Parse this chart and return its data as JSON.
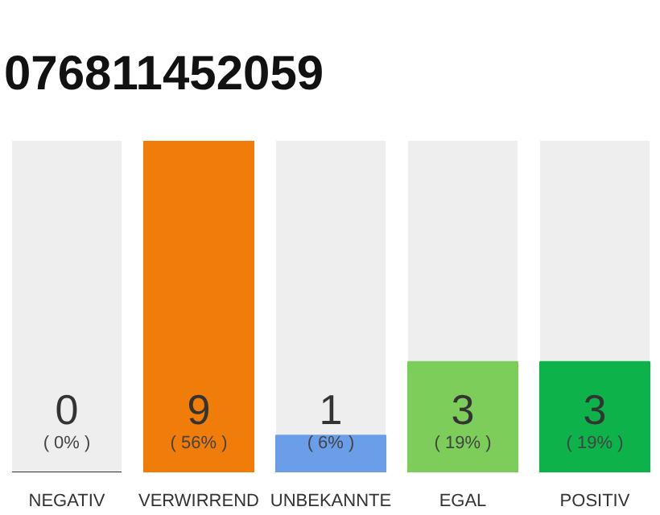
{
  "chart_data": {
    "type": "bar",
    "title": "076811452059",
    "categories": [
      "NEGATIV",
      "VERWIRREND",
      "UNBEKANNTE",
      "EGAL",
      "POSITIV"
    ],
    "values": [
      0,
      9,
      1,
      3,
      3
    ],
    "colors": [
      "#333333",
      "#f07d0a",
      "#6a9ee8",
      "#7ccd5a",
      "#0db24a"
    ],
    "data_labels": true,
    "annotations": [
      "( 0% )",
      "( 56% )",
      "( 6% )",
      "( 19% )",
      "( 19% )"
    ],
    "grid": false
  }
}
